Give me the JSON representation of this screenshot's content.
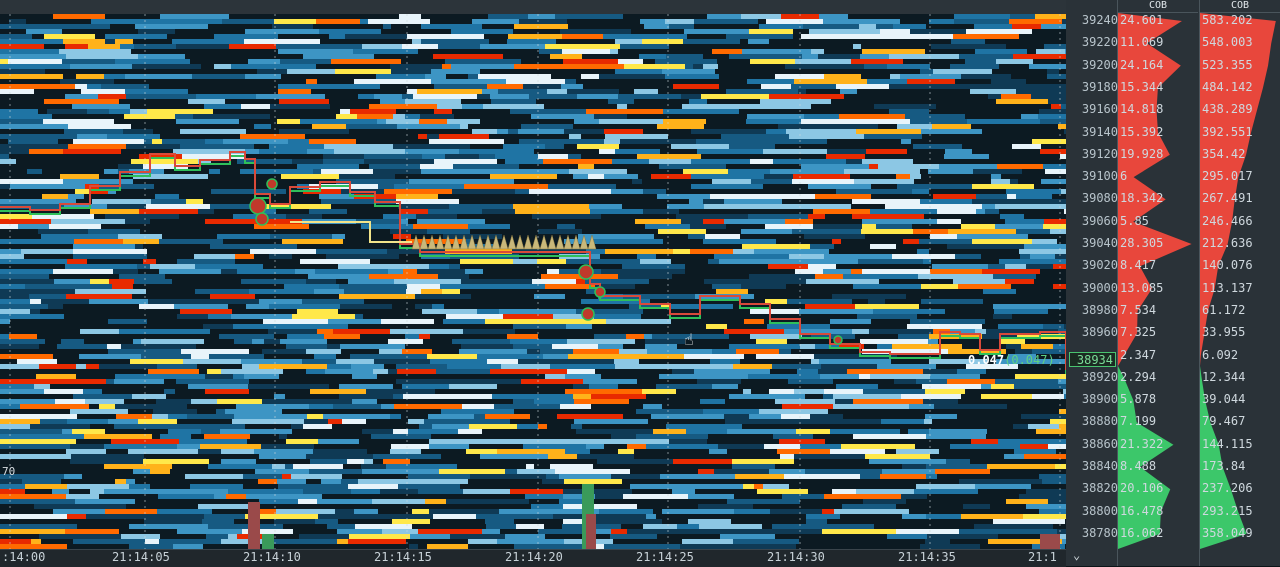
{
  "time_axis": {
    "ticks": [
      ":14:00",
      "21:14:05",
      "21:14:10",
      "21:14:15",
      "21:14:20",
      "21:14:25",
      "21:14:30",
      "21:14:35",
      "21:1"
    ]
  },
  "left_label": "70",
  "right_panel": {
    "headers": [
      "COB",
      "COB"
    ],
    "current_price": "38934",
    "rows": [
      {
        "price": "39240",
        "cob_bar": "24.601",
        "cob_cum": "583.202",
        "side": "ask"
      },
      {
        "price": "39220",
        "cob_bar": "11.069",
        "cob_cum": "548.003",
        "side": "ask"
      },
      {
        "price": "39200",
        "cob_bar": "24.164",
        "cob_cum": "523.355",
        "side": "ask"
      },
      {
        "price": "39180",
        "cob_bar": "15.344",
        "cob_cum": "484.142",
        "side": "ask"
      },
      {
        "price": "39160",
        "cob_bar": "14.818",
        "cob_cum": "438.289",
        "side": "ask"
      },
      {
        "price": "39140",
        "cob_bar": "15.392",
        "cob_cum": "392.551",
        "side": "ask"
      },
      {
        "price": "39120",
        "cob_bar": "19.928",
        "cob_cum": "354.42",
        "side": "ask"
      },
      {
        "price": "39100",
        "cob_bar": "6",
        "cob_cum": "295.017",
        "side": "ask"
      },
      {
        "price": "39080",
        "cob_bar": "18.342",
        "cob_cum": "267.491",
        "side": "ask"
      },
      {
        "price": "39060",
        "cob_bar": "5.85",
        "cob_cum": "246.466",
        "side": "ask"
      },
      {
        "price": "39040",
        "cob_bar": "28.305",
        "cob_cum": "212.636",
        "side": "ask"
      },
      {
        "price": "39020",
        "cob_bar": "8.417",
        "cob_cum": "140.076",
        "side": "ask"
      },
      {
        "price": "39000",
        "cob_bar": "13.085",
        "cob_cum": "113.137",
        "side": "ask"
      },
      {
        "price": "38980",
        "cob_bar": "7.534",
        "cob_cum": "61.172",
        "side": "ask"
      },
      {
        "price": "38960",
        "cob_bar": "7.325",
        "cob_cum": "33.955",
        "side": "ask"
      },
      {
        "price": "",
        "cob_bar": "2.347",
        "cob_cum": "6.092",
        "side": "ask"
      },
      {
        "price": "38920",
        "cob_bar": "2.294",
        "cob_cum": "12.344",
        "side": "bid"
      },
      {
        "price": "38900",
        "cob_bar": "5.878",
        "cob_cum": "39.044",
        "side": "bid"
      },
      {
        "price": "38880",
        "cob_bar": "7.199",
        "cob_cum": "79.467",
        "side": "bid"
      },
      {
        "price": "38860",
        "cob_bar": "21.322",
        "cob_cum": "144.115",
        "side": "bid"
      },
      {
        "price": "38840",
        "cob_bar": "8.488",
        "cob_cum": "173.84",
        "side": "bid"
      },
      {
        "price": "38820",
        "cob_bar": "20.106",
        "cob_cum": "237.206",
        "side": "bid"
      },
      {
        "price": "38800",
        "cob_bar": "16.478",
        "cob_cum": "293.215",
        "side": "bid"
      },
      {
        "price": "38780",
        "cob_bar": "16.062",
        "cob_cum": "358.049",
        "side": "bid"
      }
    ]
  },
  "trade_label": {
    "size": "0.047",
    "size_paren": "(0.047)"
  },
  "colors": {
    "ask": "#e8473c",
    "bid": "#3cc76a",
    "bid_line": "#2fbf5a",
    "ask_line": "#d94a3a",
    "heat_low": "#1a5e86",
    "heat_mid": "#ffffff",
    "heat_high": "#ff3a00"
  },
  "icons": [
    "pointer-cursor-icon",
    "chevron-down-icon"
  ]
}
